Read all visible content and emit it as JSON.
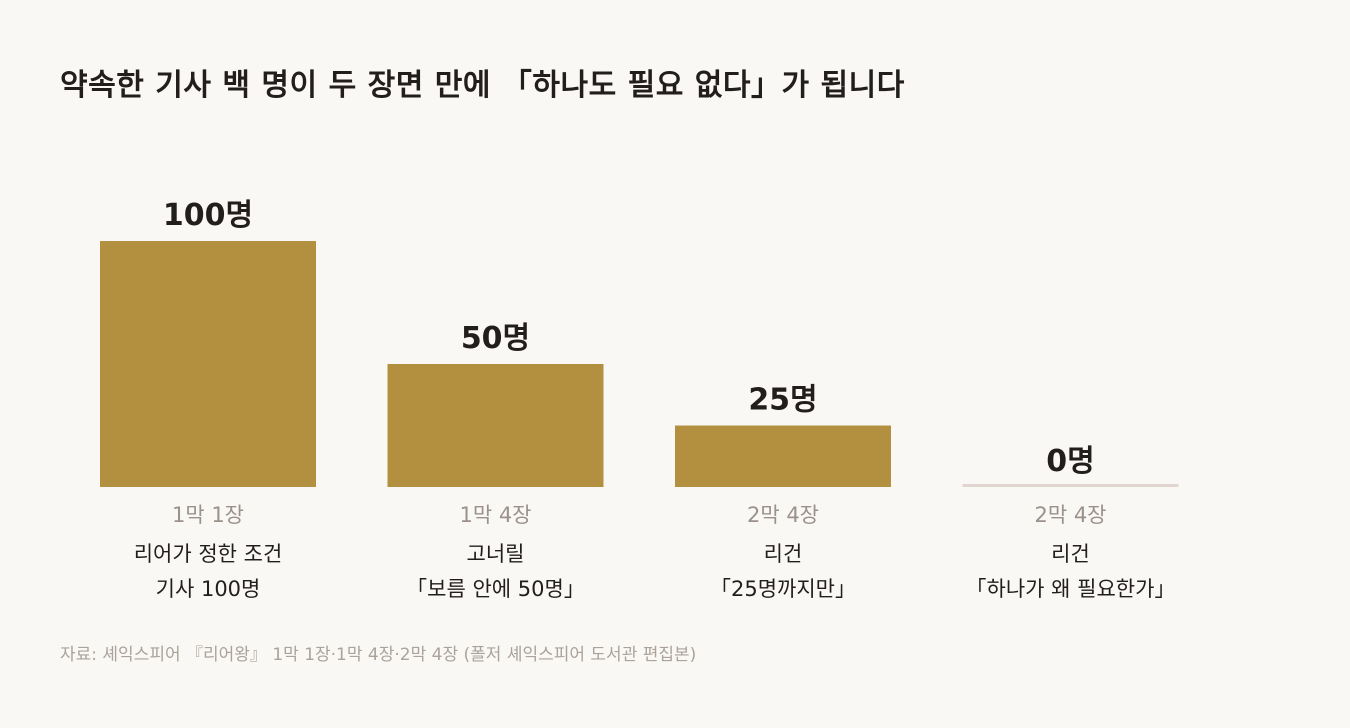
{
  "colors": {
    "background": "#faf8f5",
    "bar": "#b38f40",
    "zero_line": "#e0d6cf",
    "text_dark": "#221e1c",
    "text_muted": "#9b918a",
    "text_source": "#aaa29b"
  },
  "source": "자료: 셰익스피어 『리어왕』 1막 1장·1막 4장·2막 4장 (폴저 셰익스피어 도서관 편집본)",
  "chart_data": {
    "type": "bar",
    "title": "약속한 기사 백 명이 두 장면 만에 「하나도 필요 없다」가 됩니다",
    "unit_suffix": "명",
    "ylim": [
      0,
      100
    ],
    "grid": false,
    "legend": "none",
    "categories": [
      "1막 1장",
      "1막 4장",
      "2막 4장",
      "2막 4장"
    ],
    "values": [
      100,
      50,
      25,
      0
    ],
    "value_labels": [
      "100명",
      "50명",
      "25명",
      "0명"
    ],
    "category_descriptions": [
      [
        "리어가 정한 조건",
        "기사 100명"
      ],
      [
        "고너릴",
        "「보름 안에 50명」"
      ],
      [
        "리건",
        "「25명까지만」"
      ],
      [
        "리건",
        "「하나가 왜 필요한가」"
      ]
    ]
  }
}
